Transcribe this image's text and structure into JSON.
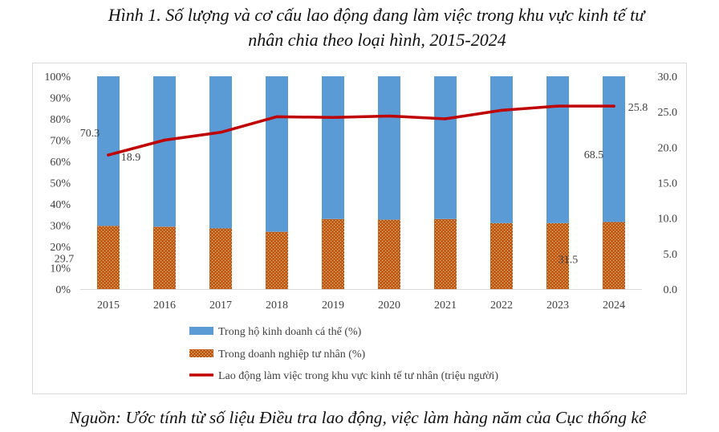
{
  "title_line1": "Hình 1. Số lượng và cơ cấu lao động đang làm việc trong khu vực kinh tế tư",
  "title_line2": "nhân chia theo loại hình, 2015-2024",
  "source": "Nguồn: Ước tính từ số liệu Điều tra lao động, việc làm hàng năm của Cục thống kê",
  "chart_data": {
    "type": "bar",
    "stacked": "percent",
    "categories": [
      "2015",
      "2016",
      "2017",
      "2018",
      "2019",
      "2020",
      "2021",
      "2022",
      "2023",
      "2024"
    ],
    "series": [
      {
        "name": "Trong hộ kinh doanh cá thể (%)",
        "type": "bar",
        "axis": "left",
        "color": "#5B9BD5",
        "values": [
          70.3,
          70.7,
          71.5,
          73.1,
          67.1,
          67.4,
          67.1,
          69.0,
          69.0,
          68.5
        ]
      },
      {
        "name": "Trong doanh nghiệp tư nhân (%)",
        "type": "bar",
        "axis": "left",
        "color": "#C55A11",
        "fill_pattern": "dotted",
        "values": [
          29.7,
          29.3,
          28.5,
          26.9,
          32.9,
          32.6,
          32.9,
          31.0,
          31.0,
          31.5
        ]
      },
      {
        "name": "Lao động làm việc trong khu vực kinh tế tư nhân (triệu người)",
        "type": "line",
        "axis": "right",
        "color": "#C00000",
        "values": [
          18.9,
          21.0,
          22.1,
          24.3,
          24.2,
          24.4,
          24.0,
          25.2,
          25.8,
          25.8
        ]
      }
    ],
    "y_left": {
      "min": 0,
      "max": 100,
      "step": 10,
      "tick_labels": [
        "0%",
        "10%",
        "20%",
        "30%",
        "40%",
        "50%",
        "60%",
        "70%",
        "80%",
        "90%",
        "100%"
      ]
    },
    "y_right": {
      "min": 0,
      "max": 30,
      "step": 5,
      "tick_labels": [
        "0.0",
        "5.0",
        "10.0",
        "15.0",
        "20.0",
        "25.0",
        "30.0"
      ]
    },
    "data_labels": [
      {
        "series": 0,
        "index": 0,
        "text": "70.3"
      },
      {
        "series": 1,
        "index": 0,
        "text": "29.7"
      },
      {
        "series": 2,
        "index": 0,
        "text": "18.9"
      },
      {
        "series": 0,
        "index": 9,
        "text": "68.5"
      },
      {
        "series": 1,
        "index": 9,
        "text": "31.5"
      },
      {
        "series": 2,
        "index": 9,
        "text": "25.8"
      }
    ],
    "grid": false,
    "legend_position": "bottom"
  }
}
